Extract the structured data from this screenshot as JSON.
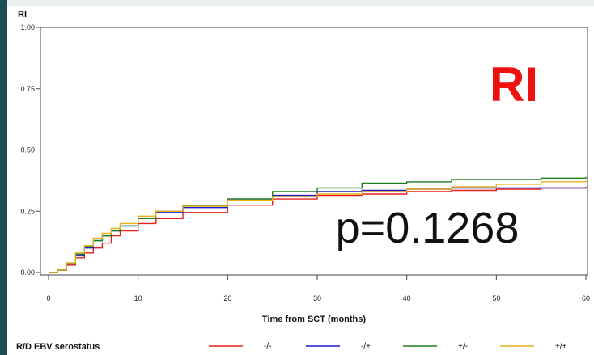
{
  "chart_data": {
    "type": "line",
    "title": "",
    "ylabel": "RI",
    "xlabel": "Time from SCT (months)",
    "xlim": [
      0,
      60
    ],
    "ylim": [
      0,
      1
    ],
    "x_ticks": [
      "0",
      "10",
      "20",
      "30",
      "40",
      "50",
      "60"
    ],
    "y_ticks": [
      "0.00",
      "0.25",
      "0.50",
      "0.75",
      "1.00"
    ],
    "grid": false,
    "annotations": {
      "label": "RI",
      "label_color": "#ee1111",
      "pvalue": "p=0.1268"
    },
    "legend": {
      "title": "R/D EBV serostatus",
      "placement": "bottom"
    },
    "series": [
      {
        "name": "-/-",
        "color": "#e8201c",
        "x": [
          0,
          1,
          2,
          3,
          4,
          5,
          6,
          7,
          8,
          10,
          12,
          15,
          20,
          25,
          30,
          35,
          40,
          45,
          50,
          55,
          60
        ],
        "y": [
          0,
          0.01,
          0.03,
          0.06,
          0.08,
          0.1,
          0.12,
          0.15,
          0.17,
          0.2,
          0.22,
          0.245,
          0.275,
          0.3,
          0.315,
          0.32,
          0.33,
          0.335,
          0.34,
          0.345,
          0.35
        ]
      },
      {
        "name": "-/+",
        "color": "#1c1ccc",
        "x": [
          0,
          1,
          2,
          3,
          4,
          5,
          6,
          7,
          8,
          10,
          12,
          15,
          20,
          25,
          30,
          35,
          40,
          45,
          50,
          55,
          60
        ],
        "y": [
          0,
          0.01,
          0.035,
          0.07,
          0.1,
          0.13,
          0.15,
          0.17,
          0.19,
          0.22,
          0.245,
          0.265,
          0.3,
          0.315,
          0.33,
          0.335,
          0.34,
          0.345,
          0.345,
          0.345,
          0.345
        ]
      },
      {
        "name": "+/-",
        "color": "#1e7d1e",
        "x": [
          0,
          1,
          2,
          3,
          4,
          5,
          6,
          7,
          8,
          10,
          12,
          15,
          20,
          25,
          30,
          35,
          40,
          45,
          50,
          55,
          60
        ],
        "y": [
          0,
          0.01,
          0.035,
          0.075,
          0.105,
          0.13,
          0.15,
          0.17,
          0.19,
          0.22,
          0.25,
          0.275,
          0.3,
          0.33,
          0.345,
          0.365,
          0.37,
          0.38,
          0.38,
          0.385,
          0.39
        ]
      },
      {
        "name": "+/+",
        "color": "#e8b01c",
        "x": [
          0,
          1,
          2,
          3,
          4,
          5,
          6,
          7,
          8,
          10,
          12,
          15,
          20,
          25,
          30,
          35,
          40,
          45,
          50,
          55,
          60
        ],
        "y": [
          0,
          0.01,
          0.04,
          0.08,
          0.11,
          0.14,
          0.16,
          0.18,
          0.2,
          0.23,
          0.25,
          0.27,
          0.295,
          0.31,
          0.32,
          0.33,
          0.34,
          0.35,
          0.36,
          0.37,
          0.375
        ]
      }
    ]
  }
}
